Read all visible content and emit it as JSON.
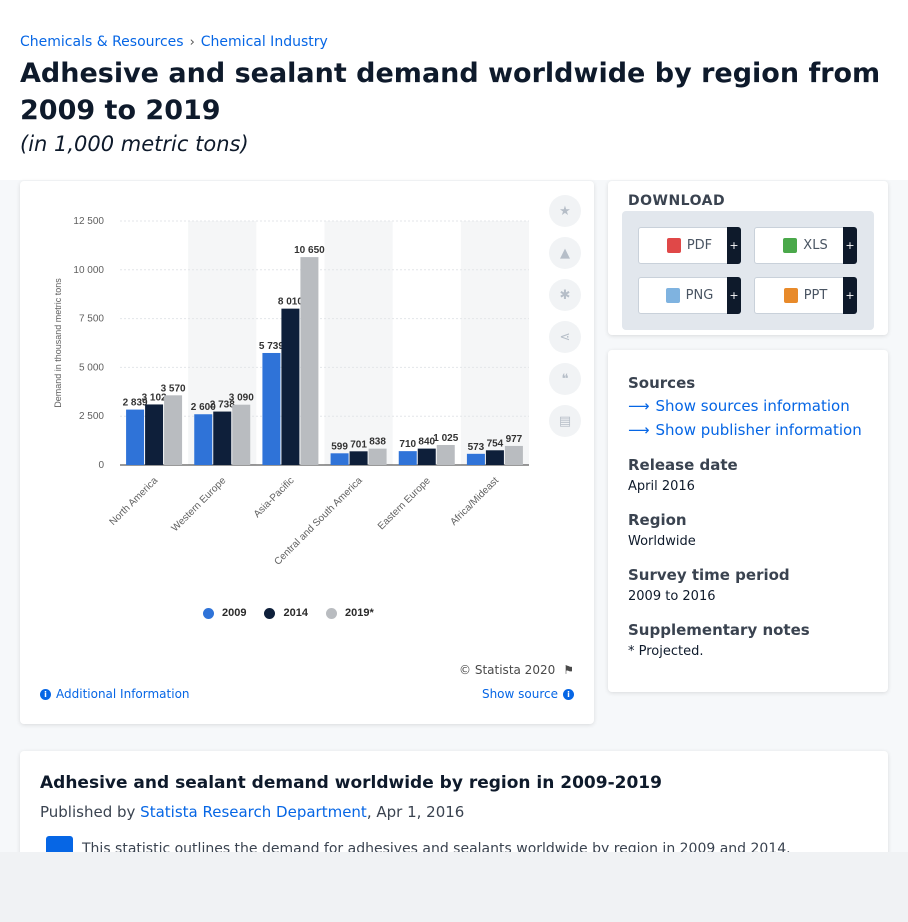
{
  "breadcrumb": {
    "item1": "Chemicals & Resources",
    "sep": "›",
    "item2": "Chemical Industry"
  },
  "page_title": "Adhesive and sealant demand worldwide by region from 2009 to 2019",
  "page_subtitle": "(in 1,000 metric tons)",
  "colors": {
    "s2009": "#2f73d8",
    "s2014": "#0e1f3a",
    "s2019": "#b9bcc0",
    "link": "#0666e5"
  },
  "chart_data": {
    "type": "bar",
    "categories": [
      "North America",
      "Western Europe",
      "Asia-Pacific",
      "Central and South America",
      "Eastern Europe",
      "Africa/Mideast"
    ],
    "series": [
      {
        "name": "2009",
        "values": [
          2839,
          2600,
          5739,
          599,
          710,
          573
        ]
      },
      {
        "name": "2014",
        "values": [
          3102,
          2738,
          8010,
          701,
          840,
          754
        ]
      },
      {
        "name": "2019*",
        "values": [
          3570,
          3090,
          10650,
          838,
          1025,
          977
        ]
      }
    ],
    "value_labels": [
      [
        "2 839",
        "2 600",
        "5 739",
        "599",
        "710",
        "573"
      ],
      [
        "3 102",
        "2 738",
        "8 010",
        "701",
        "840",
        "754"
      ],
      [
        "3 570",
        "3 090",
        "10 650",
        "838",
        "1 025",
        "977"
      ]
    ],
    "ylabel": "Demand in thousand metric tons",
    "ylim": [
      0,
      12500
    ],
    "yticks": [
      0,
      2500,
      5000,
      7500,
      10000,
      12500
    ],
    "ytick_labels": [
      "0",
      "2 500",
      "5 000",
      "7 500",
      "10 000",
      "12 500"
    ],
    "legend_position": "bottom",
    "grid": true
  },
  "chart_footer": {
    "copyright": "© Statista 2020",
    "additional_info": "Additional Information",
    "show_source": "Show source"
  },
  "download": {
    "title": "DOWNLOAD",
    "pdf": "PDF",
    "xls": "XLS",
    "png": "PNG",
    "ppt": "PPT",
    "plus": "+"
  },
  "info": {
    "sources_label": "Sources",
    "show_sources": "Show sources information",
    "show_publisher": "Show publisher information",
    "release_label": "Release date",
    "release_value": "April 2016",
    "region_label": "Region",
    "region_value": "Worldwide",
    "survey_label": "Survey time period",
    "survey_value": "2009 to 2016",
    "notes_label": "Supplementary notes",
    "notes_value": "* Projected."
  },
  "description": {
    "title": "Adhesive and sealant demand worldwide by region in 2009-2019",
    "published_by": "Published by",
    "publisher": "Statista Research Department",
    "date": ", Apr 1, 2016",
    "body": "This statistic outlines the demand for adhesives and sealants worldwide by region in 2009 and 2014."
  }
}
